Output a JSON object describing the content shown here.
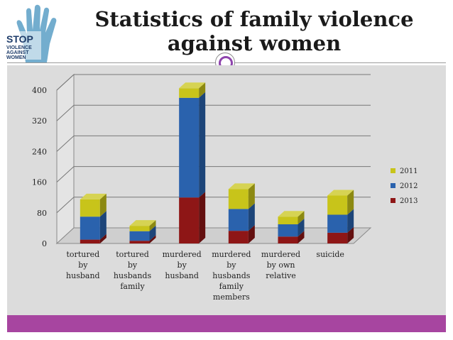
{
  "title": "Statistics of family violence against women",
  "logo": {
    "lines": [
      "STOP",
      "VIOLENCE",
      "AGAINST",
      "WOMEN"
    ]
  },
  "colors": {
    "2011": "#c8c41a",
    "2012": "#2a62ad",
    "2013": "#8e1616",
    "accent": "#a745a0",
    "panel": "#dcdcdc"
  },
  "chart_data": {
    "type": "bar",
    "stacked": true,
    "three_d": true,
    "categories": [
      [
        "tortured",
        "by",
        "husband"
      ],
      [
        "tortured",
        "by",
        "husbands",
        "family"
      ],
      [
        "murdered",
        "by",
        "husband"
      ],
      [
        "murdered",
        "by",
        "husbands",
        "family",
        "members"
      ],
      [
        "murdered",
        "by own",
        "relative"
      ],
      [
        "suicide"
      ]
    ],
    "series": [
      {
        "name": "2013",
        "values": [
          10,
          7,
          120,
          33,
          18,
          28
        ]
      },
      {
        "name": "2012",
        "values": [
          60,
          25,
          260,
          57,
          32,
          47
        ]
      },
      {
        "name": "2011",
        "values": [
          45,
          14,
          25,
          52,
          20,
          50
        ]
      }
    ],
    "legend_order": [
      "2011",
      "2012",
      "2013"
    ],
    "yticks": [
      "0",
      "80",
      "160",
      "240",
      "320",
      "400"
    ],
    "ylim": [
      0,
      400
    ],
    "grid": true,
    "legend_position": "right"
  }
}
